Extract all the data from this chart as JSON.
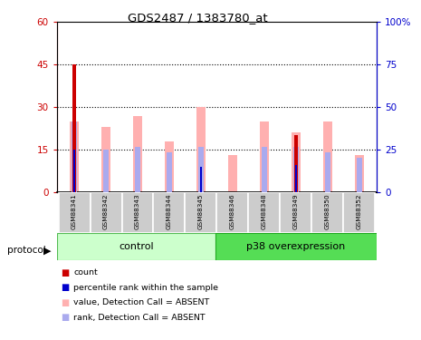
{
  "title": "GDS2487 / 1383780_at",
  "samples": [
    "GSM88341",
    "GSM88342",
    "GSM88343",
    "GSM88344",
    "GSM88345",
    "GSM88346",
    "GSM88348",
    "GSM88349",
    "GSM88350",
    "GSM88352"
  ],
  "red_bars": [
    45,
    0,
    0,
    0,
    0,
    0,
    0,
    20,
    0,
    0
  ],
  "blue_bars_left": [
    25,
    0,
    0,
    0,
    15,
    0,
    0,
    16,
    0,
    0
  ],
  "pink_bars": [
    25,
    23,
    27,
    18,
    30,
    13,
    25,
    21,
    25,
    13
  ],
  "lightblue_bars": [
    25,
    15,
    16,
    14,
    16,
    0,
    16,
    16,
    14,
    12
  ],
  "ylim_left": [
    0,
    60
  ],
  "ylim_right": [
    0,
    100
  ],
  "yticks_left": [
    0,
    15,
    30,
    45,
    60
  ],
  "ytick_labels_left": [
    "0",
    "15",
    "30",
    "45",
    "60"
  ],
  "yticks_right": [
    0,
    25,
    50,
    75,
    100
  ],
  "ytick_labels_right": [
    "0",
    "25",
    "50",
    "75",
    "100%"
  ],
  "left_color": "#cc0000",
  "right_color": "#0000cc",
  "pink_color": "#ffb0b0",
  "lightblue_color": "#aaaaee",
  "red_color": "#cc0000",
  "blue_color": "#0000cc",
  "control_bg": "#ccffcc",
  "p38_bg": "#55dd55",
  "tick_area_bg": "#cccccc",
  "dotted_yticks": [
    15,
    30,
    45
  ],
  "legend_items": [
    "count",
    "percentile rank within the sample",
    "value, Detection Call = ABSENT",
    "rank, Detection Call = ABSENT"
  ],
  "legend_colors": [
    "#cc0000",
    "#0000cc",
    "#ffb0b0",
    "#aaaaee"
  ],
  "protocol_label": "protocol"
}
